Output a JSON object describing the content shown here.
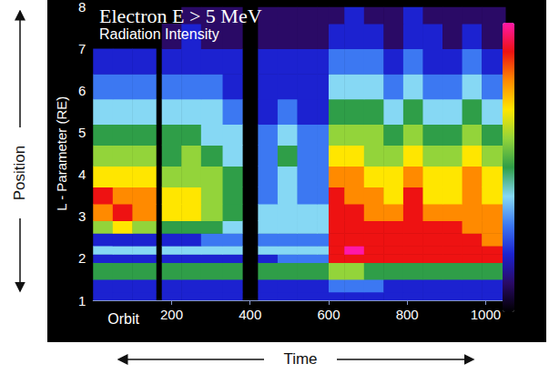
{
  "chart_data": {
    "type": "heatmap",
    "title": "Electron E > 5 MeV",
    "subtitle": "Radiation Intensity",
    "x_label": "Orbit",
    "y_label": "L - Parameter (RE)",
    "outer_x_label": "Time",
    "outer_y_label": "Position",
    "x_edges": [
      0,
      50,
      100,
      160,
      175,
      225,
      275,
      330,
      380,
      420,
      470,
      520,
      570,
      600,
      640,
      690,
      740,
      790,
      840,
      890,
      940,
      990,
      1050
    ],
    "y_edges": [
      1,
      1.2,
      1.5,
      1.9,
      2.1,
      2.3,
      2.6,
      2.9,
      3.3,
      3.7,
      4.2,
      4.7,
      5.2,
      5.8,
      6.4,
      7.0,
      7.6,
      8.0
    ],
    "cells": [
      [
        2,
        2,
        2,
        null,
        2,
        2,
        2,
        2,
        null,
        2,
        2,
        2,
        2,
        2,
        2,
        2,
        2,
        2,
        2,
        2,
        2,
        2
      ],
      [
        2,
        2,
        2,
        null,
        2,
        2,
        2,
        2,
        null,
        2,
        2,
        2,
        2,
        3,
        3,
        3,
        2,
        2,
        2,
        2,
        2,
        2
      ],
      [
        5,
        5,
        5,
        null,
        5,
        5,
        5,
        5,
        null,
        5,
        5,
        5,
        5,
        6,
        6,
        5,
        5,
        5,
        5,
        5,
        5,
        5
      ],
      [
        2,
        2,
        2,
        null,
        2,
        2,
        2,
        2,
        null,
        2,
        3,
        3,
        3,
        9,
        9,
        9,
        9,
        9,
        9,
        9,
        9,
        9
      ],
      [
        4,
        4,
        4,
        null,
        4,
        4,
        4,
        4,
        null,
        4,
        4,
        4,
        4,
        9,
        10,
        9,
        9,
        9,
        9,
        9,
        9,
        9
      ],
      [
        2,
        2,
        2,
        null,
        2,
        2,
        3,
        3,
        null,
        3,
        3,
        3,
        3,
        9,
        9,
        9,
        9,
        9,
        9,
        9,
        9,
        8
      ],
      [
        6,
        7,
        6,
        null,
        5,
        5,
        5,
        4,
        null,
        4,
        4,
        4,
        4,
        9,
        9,
        9,
        9,
        9,
        9,
        9,
        8,
        8
      ],
      [
        8,
        9,
        8,
        null,
        7,
        7,
        6,
        5,
        null,
        4,
        4,
        4,
        4,
        9,
        9,
        8,
        8,
        9,
        8,
        8,
        8,
        8
      ],
      [
        9,
        8,
        8,
        null,
        7,
        7,
        6,
        5,
        null,
        3,
        4,
        3,
        3,
        9,
        8,
        8,
        7,
        9,
        7,
        7,
        8,
        7
      ],
      [
        7,
        7,
        7,
        null,
        6,
        6,
        6,
        5,
        null,
        3,
        4,
        3,
        3,
        8,
        8,
        7,
        7,
        8,
        7,
        7,
        8,
        7
      ],
      [
        6,
        6,
        6,
        null,
        5,
        6,
        5,
        4,
        null,
        3,
        5,
        3,
        3,
        7,
        7,
        6,
        6,
        7,
        6,
        6,
        7,
        6
      ],
      [
        5,
        5,
        5,
        null,
        5,
        5,
        4,
        4,
        null,
        3,
        4,
        3,
        3,
        6,
        6,
        6,
        5,
        6,
        5,
        5,
        6,
        5
      ],
      [
        4,
        4,
        4,
        null,
        4,
        4,
        4,
        3,
        null,
        2,
        3,
        2,
        2,
        5,
        5,
        5,
        4,
        5,
        4,
        4,
        5,
        4
      ],
      [
        3,
        3,
        3,
        null,
        3,
        3,
        3,
        2,
        null,
        2,
        2,
        2,
        2,
        4,
        4,
        4,
        3,
        4,
        3,
        3,
        4,
        3
      ],
      [
        2,
        2,
        2,
        null,
        2,
        2,
        2,
        2,
        null,
        2,
        2,
        2,
        2,
        3,
        3,
        3,
        2,
        3,
        2,
        2,
        3,
        2
      ],
      [
        null,
        null,
        null,
        null,
        1,
        2,
        1,
        1,
        null,
        1,
        1,
        1,
        1,
        2,
        2,
        2,
        1,
        2,
        2,
        1,
        2,
        1
      ],
      [
        null,
        null,
        null,
        null,
        null,
        1,
        1,
        1,
        null,
        1,
        1,
        1,
        1,
        1,
        2,
        1,
        1,
        2,
        1,
        1,
        1,
        1
      ]
    ],
    "color_range": [
      0,
      10
    ],
    "xlim": [
      0,
      1050
    ],
    "xticks": [
      200,
      400,
      600,
      800,
      1000
    ],
    "ylim": [
      1,
      8
    ],
    "yticks": [
      1,
      2,
      3,
      4,
      5,
      6,
      7,
      8
    ],
    "grid": false
  }
}
